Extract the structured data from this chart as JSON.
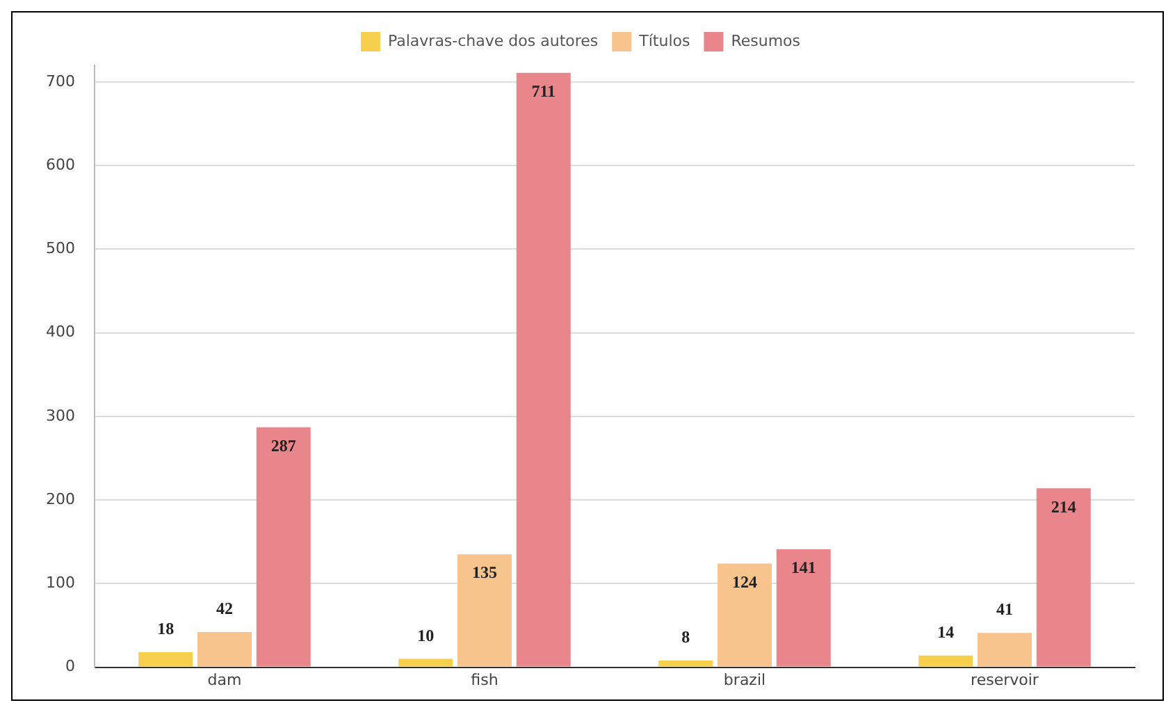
{
  "chart_data": {
    "type": "bar",
    "categories": [
      "dam",
      "fish",
      "brazil",
      "reservoir"
    ],
    "series": [
      {
        "name": "Palavras-chave dos autores",
        "color": "#f6d04d",
        "values": [
          18,
          10,
          8,
          14
        ]
      },
      {
        "name": "Títulos",
        "color": "#f7c48e",
        "values": [
          42,
          135,
          124,
          41
        ]
      },
      {
        "name": "Resumos",
        "color": "#e8868c",
        "values": [
          287,
          711,
          141,
          214
        ]
      }
    ],
    "ylim": [
      0,
      720
    ],
    "yticks": [
      0,
      100,
      200,
      300,
      400,
      500,
      600,
      700
    ],
    "grid": "y",
    "legend": "top",
    "data_labels": true
  }
}
